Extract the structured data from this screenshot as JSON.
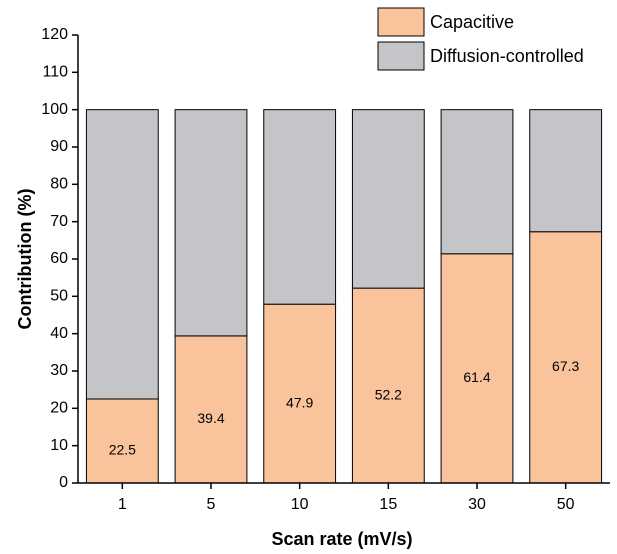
{
  "chart_data": {
    "type": "stacked_bar",
    "xlabel": "Scan rate (mV/s)",
    "ylabel": "Contribution (%)",
    "categories": [
      "1",
      "5",
      "10",
      "15",
      "30",
      "50"
    ],
    "series": [
      {
        "name": "Capacitive",
        "color": "#f9c49b",
        "values": [
          22.5,
          39.4,
          47.9,
          52.2,
          61.4,
          67.3
        ],
        "show_values": true
      },
      {
        "name": "Diffusion-controlled",
        "color": "#c4c5c9",
        "values": [
          77.5,
          60.6,
          52.1,
          47.8,
          38.6,
          32.7
        ]
      }
    ],
    "ylim": [
      0,
      120
    ],
    "yticks": [
      0,
      10,
      20,
      30,
      40,
      50,
      60,
      70,
      80,
      90,
      100,
      110,
      120
    ],
    "legend": "upper right"
  }
}
